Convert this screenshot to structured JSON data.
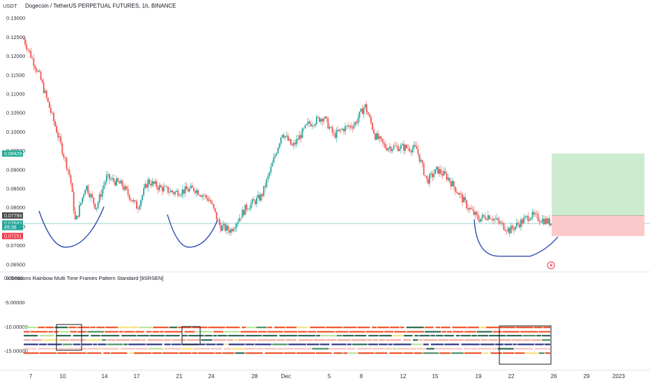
{
  "header": {
    "currency": "USDT",
    "title": "Dogecoin / TetherUS PERPETUAL FUTURES, 1h, BINANCE"
  },
  "indicator": {
    "title": "9 Seasons Rainbow Multi Time Frames Pattern Standard [9SRSEN]",
    "ticks": [
      "0.00000",
      "-5.00000",
      "-10.00000",
      "-15.00000"
    ],
    "tick_values": [
      0,
      -5,
      -10,
      -15
    ],
    "ylim": [
      -18.7,
      1.1
    ],
    "stripe_colors": [
      "#f0542a",
      "#f0542a",
      "#2e6a52",
      "#f7a89a",
      "#2a3580",
      "#f7c5bd"
    ],
    "alt_colors": [
      "#f7e27a",
      "#b9e59a",
      "#4f8f63",
      "#2e6a52"
    ],
    "stripe_levels": [
      -10.1,
      -11.0,
      -11.8,
      -12.7,
      -13.6,
      -14.5,
      -15.4
    ]
  },
  "price_axis": {
    "ticks": [
      "0.13000",
      "0.12500",
      "0.12000",
      "0.11500",
      "0.11000",
      "0.10500",
      "0.10000",
      "0.09500",
      "0.09000",
      "0.08500",
      "0.08000",
      "0.07500",
      "0.07000",
      "0.06500"
    ],
    "tick_values": [
      0.13,
      0.125,
      0.12,
      0.115,
      0.11,
      0.105,
      0.1,
      0.095,
      0.09,
      0.085,
      0.08,
      0.075,
      0.07,
      0.065
    ],
    "ylim": [
      0.0635,
      0.1315
    ],
    "tags": [
      {
        "label": "0.09429",
        "value": 0.09429,
        "color": "#22ab94"
      },
      {
        "label": "0.07794",
        "value": 0.07794,
        "color": "#4a4a4a"
      },
      {
        "label": "0.07582",
        "value": 0.07582,
        "color": "#26a69a"
      },
      {
        "label": "49:36",
        "value": 0.07488,
        "color": "#26a69a"
      },
      {
        "label": "0.07251",
        "value": 0.07251,
        "color": "#f23645"
      }
    ],
    "current_price": 0.07582
  },
  "time_axis": {
    "labels": [
      "7",
      "10",
      "14",
      "17",
      "21",
      "24",
      "28",
      "Dec",
      "5",
      "8",
      "12",
      "15",
      "19",
      "22",
      "26",
      "29",
      "2023"
    ]
  },
  "chart_data": {
    "type": "candlestick",
    "x_labels": [
      "7",
      "10",
      "14",
      "17",
      "21",
      "24",
      "28",
      "Dec",
      "5",
      "8",
      "12",
      "15",
      "19",
      "22",
      "26",
      "29",
      "2023"
    ],
    "price_path": [
      [
        0,
        0.1245
      ],
      [
        3,
        0.115
      ],
      [
        6,
        0.102
      ],
      [
        9,
        0.088
      ],
      [
        10,
        0.076
      ],
      [
        12,
        0.086
      ],
      [
        14,
        0.08
      ],
      [
        16,
        0.088
      ],
      [
        19,
        0.086
      ],
      [
        22,
        0.08
      ],
      [
        24,
        0.087
      ],
      [
        26,
        0.0855
      ],
      [
        29,
        0.084
      ],
      [
        33,
        0.085
      ],
      [
        36,
        0.082
      ],
      [
        38,
        0.075
      ],
      [
        40,
        0.074
      ],
      [
        43,
        0.08
      ],
      [
        46,
        0.083
      ],
      [
        48,
        0.091
      ],
      [
        50,
        0.1
      ],
      [
        52,
        0.096
      ],
      [
        55,
        0.102
      ],
      [
        58,
        0.104
      ],
      [
        60,
        0.099
      ],
      [
        62,
        0.101
      ],
      [
        64,
        0.102
      ],
      [
        66,
        0.107
      ],
      [
        68,
        0.099
      ],
      [
        70,
        0.096
      ],
      [
        73,
        0.096
      ],
      [
        76,
        0.0955
      ],
      [
        78,
        0.087
      ],
      [
        80,
        0.09
      ],
      [
        82,
        0.088
      ],
      [
        84,
        0.084
      ],
      [
        86,
        0.08
      ],
      [
        88,
        0.077
      ],
      [
        90,
        0.078
      ],
      [
        92,
        0.076
      ],
      [
        94,
        0.074
      ],
      [
        96,
        0.076
      ],
      [
        98,
        0.078
      ],
      [
        100,
        0.077
      ],
      [
        102,
        0.076
      ]
    ],
    "position": {
      "entry": 0.07794,
      "target": 0.09429,
      "stop": 0.07251
    },
    "patterns": [
      {
        "name": "cup-1",
        "bottom": 0.07
      },
      {
        "name": "cup-2",
        "bottom": 0.071
      },
      {
        "name": "cup-3",
        "bottom": 0.0675
      }
    ]
  }
}
